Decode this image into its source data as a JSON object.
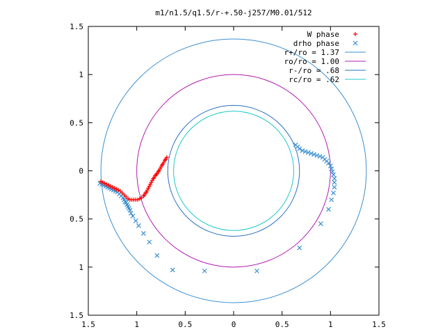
{
  "chart_data": {
    "type": "scatter",
    "title": "m1/n1.5/q1.5/r-+.50-j257/M0.01/512",
    "xlabel": "",
    "ylabel": "",
    "xlim": [
      -1.5,
      1.5
    ],
    "ylim": [
      -1.5,
      1.5
    ],
    "grid": false,
    "legend_position": "top-right",
    "x_ticks": [
      {
        "value": -1.5,
        "label": "1.5"
      },
      {
        "value": -1.0,
        "label": "1"
      },
      {
        "value": -0.5,
        "label": "0.5"
      },
      {
        "value": 0,
        "label": "0"
      },
      {
        "value": 0.5,
        "label": "0.5"
      },
      {
        "value": 1.0,
        "label": "1"
      },
      {
        "value": 1.5,
        "label": "1.5"
      }
    ],
    "y_ticks": [
      {
        "value": 1.5,
        "label": "1.5"
      },
      {
        "value": 1.0,
        "label": "1"
      },
      {
        "value": 0.5,
        "label": "0.5"
      },
      {
        "value": 0,
        "label": "0"
      },
      {
        "value": -0.5,
        "label": "0.5"
      },
      {
        "value": -1.0,
        "label": "1"
      },
      {
        "value": -1.5,
        "label": "1.5"
      }
    ],
    "circles": [
      {
        "name": "r+/ro = 1.37",
        "radius": 1.37,
        "color": "#3a8fd0"
      },
      {
        "name": "ro/ro = 1.00",
        "radius": 1.0,
        "color": "#b01cb0"
      },
      {
        "name": "r-/ro = .68",
        "radius": 0.68,
        "color": "#2a6fc0"
      },
      {
        "name": "rc/ro = .62",
        "radius": 0.62,
        "color": "#20c8c8"
      }
    ],
    "series": [
      {
        "name": "W phase",
        "marker": "plus",
        "color": "#ff0000",
        "x": [
          -1.37,
          -1.35,
          -1.33,
          -1.31,
          -1.29,
          -1.27,
          -1.25,
          -1.23,
          -1.21,
          -1.19,
          -1.17,
          -1.15,
          -1.13,
          -1.11,
          -1.09,
          -1.07,
          -1.05,
          -1.03,
          -1.01,
          -0.99,
          -0.97,
          -0.95,
          -0.93,
          -0.92,
          -0.91,
          -0.9,
          -0.89,
          -0.88,
          -0.87,
          -0.86,
          -0.85,
          -0.84,
          -0.83,
          -0.82,
          -0.81,
          -0.8,
          -0.79,
          -0.78,
          -0.77,
          -0.76,
          -0.75,
          -0.74,
          -0.73,
          -0.72,
          -0.71,
          -0.7,
          -0.69
        ],
        "y": [
          -0.11,
          -0.12,
          -0.13,
          -0.14,
          -0.15,
          -0.16,
          -0.17,
          -0.18,
          -0.19,
          -0.2,
          -0.21,
          -0.23,
          -0.25,
          -0.27,
          -0.29,
          -0.3,
          -0.3,
          -0.3,
          -0.3,
          -0.3,
          -0.29,
          -0.28,
          -0.26,
          -0.25,
          -0.23,
          -0.22,
          -0.2,
          -0.18,
          -0.16,
          -0.14,
          -0.12,
          -0.1,
          -0.08,
          -0.07,
          -0.05,
          -0.04,
          -0.03,
          -0.01,
          0.0,
          0.02,
          0.04,
          0.06,
          0.07,
          0.09,
          0.11,
          0.12,
          0.14
        ]
      },
      {
        "name": "drho phase",
        "marker": "cross",
        "color": "#3a8fd0",
        "x": [
          -1.38,
          -1.36,
          -1.34,
          -1.32,
          -1.3,
          -1.28,
          -1.26,
          -1.24,
          -1.22,
          -1.2,
          -1.18,
          -1.16,
          -1.14,
          -1.13,
          -1.12,
          -1.11,
          -1.1,
          -1.09,
          -1.08,
          -1.07,
          -1.06,
          -1.04,
          -1.01,
          -0.98,
          -0.93,
          -0.87,
          -0.79,
          -0.63,
          -0.3,
          0.24,
          0.68,
          0.9,
          0.98,
          1.01,
          1.03,
          1.04,
          1.04,
          1.04,
          1.03,
          1.02,
          1.01,
          1.0,
          0.98,
          0.96,
          0.94,
          0.92,
          0.89,
          0.86,
          0.83,
          0.8,
          0.77,
          0.74,
          0.71,
          0.68,
          0.66,
          0.64
        ],
        "y": [
          -0.13,
          -0.14,
          -0.15,
          -0.16,
          -0.17,
          -0.18,
          -0.19,
          -0.2,
          -0.21,
          -0.22,
          -0.24,
          -0.26,
          -0.28,
          -0.3,
          -0.32,
          -0.33,
          -0.35,
          -0.37,
          -0.39,
          -0.41,
          -0.44,
          -0.47,
          -0.52,
          -0.57,
          -0.65,
          -0.74,
          -0.88,
          -1.03,
          -1.04,
          -1.04,
          -0.8,
          -0.55,
          -0.4,
          -0.3,
          -0.23,
          -0.17,
          -0.12,
          -0.08,
          -0.04,
          -0.01,
          0.02,
          0.05,
          0.08,
          0.1,
          0.12,
          0.14,
          0.15,
          0.16,
          0.17,
          0.18,
          0.19,
          0.2,
          0.21,
          0.23,
          0.25,
          0.27
        ]
      }
    ]
  }
}
